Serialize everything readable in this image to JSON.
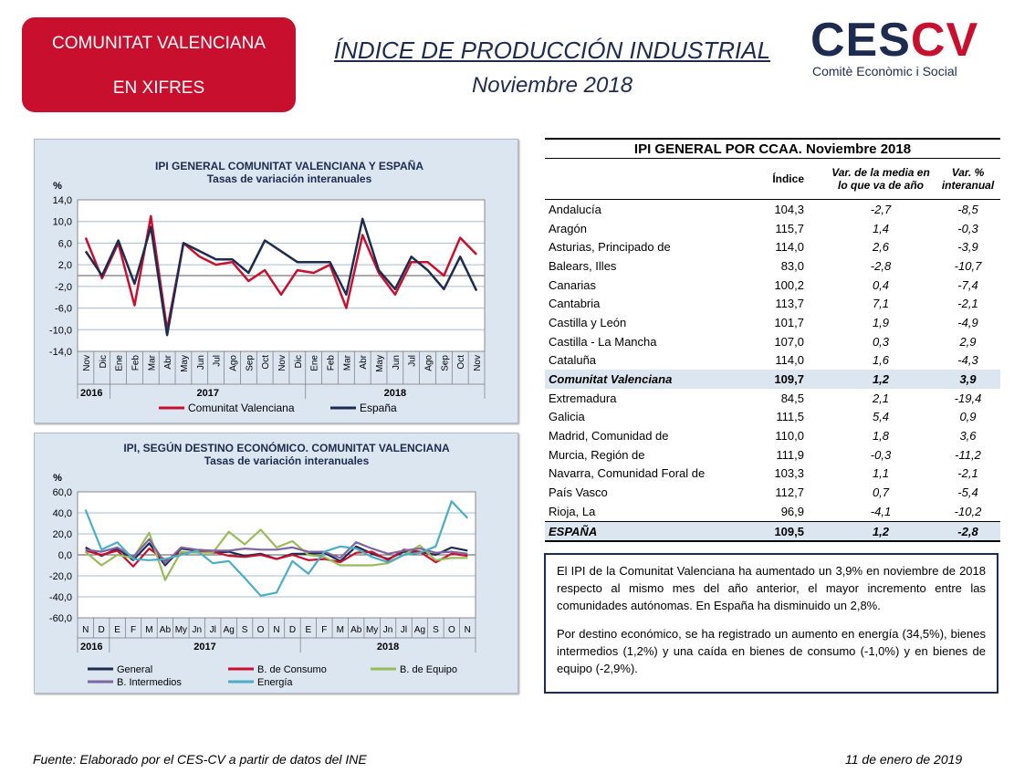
{
  "header": {
    "badge_line1": "COMUNITAT VALENCIANA",
    "badge_line2": "EN XIFRES",
    "title": "ÍNDICE DE PRODUCCIÓN INDUSTRIAL",
    "subtitle": "Noviembre 2018",
    "logo_mark_a": "CES",
    "logo_mark_b": "CV",
    "logo_tagline": "Comitè Econòmic i Social"
  },
  "colors": {
    "red": "#c8102e",
    "navy": "#1d2b4f",
    "green": "#9bbb59",
    "purple": "#8064a2",
    "cyan": "#4bacc6",
    "panel": "#dce6f1"
  },
  "chart_data": [
    {
      "type": "line",
      "title": "IPI GENERAL  COMUNITAT VALENCIANA Y ESPAÑA",
      "subtitle": "Tasas  de variación  interanuales",
      "ylabel": "%",
      "ylim": [
        -14,
        14
      ],
      "yticks": [
        "14,0",
        "10,0",
        "6,0",
        "2,0",
        "-2,0",
        "-6,0",
        "-10,0",
        "-14,0"
      ],
      "categories": [
        "Nov",
        "Dic",
        "Ene",
        "Feb",
        "Mar",
        "Abr",
        "May",
        "Jun",
        "Jul",
        "Ago",
        "Sep",
        "Oct",
        "Nov",
        "Dic",
        "Ene",
        "Feb",
        "Mar",
        "Abr",
        "May",
        "Jun",
        "Jul",
        "Ago",
        "Sep",
        "Oct",
        "Nov"
      ],
      "years": [
        "2016",
        "2017",
        "2018"
      ],
      "series": [
        {
          "name": "Comunitat Valenciana",
          "values": [
            7.0,
            -0.5,
            6.0,
            -5.5,
            11.0,
            -10.0,
            6.0,
            3.5,
            2.0,
            2.5,
            -1.0,
            1.0,
            -3.5,
            1.0,
            0.5,
            2.0,
            -6.0,
            7.5,
            0.5,
            -3.5,
            2.5,
            2.5,
            0.0,
            7.0,
            3.9
          ]
        },
        {
          "name": "España",
          "values": [
            4.5,
            0.0,
            6.5,
            -1.5,
            9.0,
            -11.0,
            6.0,
            4.5,
            3.0,
            3.0,
            0.5,
            6.5,
            4.5,
            2.5,
            2.5,
            2.5,
            -3.5,
            10.5,
            1.0,
            -2.5,
            3.5,
            1.0,
            -2.5,
            3.5,
            -2.8
          ]
        }
      ]
    },
    {
      "type": "line",
      "title": "IPI, SEGÚN DESTINO ECONÓMICO. COMUNITAT VALENCIANA",
      "subtitle": "Tasas de variación interanuales",
      "ylabel": "%",
      "ylim": [
        -60,
        60
      ],
      "yticks": [
        "60,0",
        "40,0",
        "20,0",
        "0,0",
        "-20,0",
        "-40,0",
        "-60,0"
      ],
      "categories": [
        "N",
        "D",
        "E",
        "F",
        "M",
        "Ab",
        "My",
        "Jn",
        "Jl",
        "Ag",
        "S",
        "O",
        "N",
        "D",
        "E",
        "F",
        "M",
        "Ab",
        "My",
        "Jn",
        "Jl",
        "Ag",
        "S",
        "O",
        "N"
      ],
      "years": [
        "2016",
        "2017",
        "2018"
      ],
      "series": [
        {
          "name": "General",
          "values": [
            7,
            -1,
            6,
            -5,
            11,
            -10,
            6,
            4,
            2,
            3,
            -1,
            1,
            -4,
            1,
            1,
            2,
            -6,
            8,
            1,
            -4,
            3,
            3,
            0,
            7,
            4
          ]
        },
        {
          "name": "B. de Consumo",
          "values": [
            4,
            0,
            4,
            -11,
            6,
            -5,
            2,
            3,
            3,
            -1,
            -2,
            0,
            -4,
            0,
            -5,
            -4,
            -7,
            2,
            3,
            -5,
            5,
            3,
            -7,
            1,
            -1
          ]
        },
        {
          "name": "B. de Equipo",
          "values": [
            3,
            -10,
            0,
            -3,
            21,
            -24,
            3,
            2,
            2,
            22,
            10,
            24,
            7,
            13,
            0,
            -2,
            -10,
            -10,
            -10,
            -8,
            0,
            9,
            -5,
            -3,
            -3
          ]
        },
        {
          "name": "B. Intermedios",
          "values": [
            5,
            3,
            7,
            -2,
            15,
            -8,
            7,
            5,
            4,
            4,
            6,
            5,
            5,
            7,
            3,
            3,
            -3,
            12,
            6,
            1,
            4,
            6,
            2,
            3,
            1
          ]
        },
        {
          "name": "Energía",
          "values": [
            43,
            5,
            12,
            -4,
            -5,
            -4,
            0,
            4,
            -8,
            -6,
            -22,
            -39,
            -36,
            -6,
            -18,
            3,
            8,
            6,
            -2,
            -7,
            0,
            2,
            8,
            51,
            35
          ]
        }
      ]
    }
  ],
  "table": {
    "title": "IPI GENERAL POR CCAA. Noviembre 2018",
    "col_indice": "Índice",
    "col_media": "Var. de la media en lo que va de año",
    "col_interanual": "Var. % interanual",
    "rows": [
      {
        "name": "Andalucía",
        "indice": "104,3",
        "media": "-2,7",
        "interanual": "-8,5"
      },
      {
        "name": "Aragón",
        "indice": "115,7",
        "media": "1,4",
        "interanual": "-0,3"
      },
      {
        "name": "Asturias, Principado de",
        "indice": "114,0",
        "media": "2,6",
        "interanual": "-3,9"
      },
      {
        "name": "Balears, Illes",
        "indice": "83,0",
        "media": "-2,8",
        "interanual": "-10,7"
      },
      {
        "name": "Canarias",
        "indice": "100,2",
        "media": "0,4",
        "interanual": "-7,4"
      },
      {
        "name": "Cantabria",
        "indice": "113,7",
        "media": "7,1",
        "interanual": "-2,1"
      },
      {
        "name": "Castilla y León",
        "indice": "101,7",
        "media": "1,9",
        "interanual": "-4,9"
      },
      {
        "name": "Castilla - La Mancha",
        "indice": "107,0",
        "media": "0,3",
        "interanual": "2,9"
      },
      {
        "name": "Cataluña",
        "indice": "114,0",
        "media": "1,6",
        "interanual": "-4,3"
      },
      {
        "name": "Comunitat Valenciana",
        "indice": "109,7",
        "media": "1,2",
        "interanual": "3,9"
      },
      {
        "name": "Extremadura",
        "indice": "84,5",
        "media": "2,1",
        "interanual": "-19,4"
      },
      {
        "name": "Galicia",
        "indice": "111,5",
        "media": "5,4",
        "interanual": "0,9"
      },
      {
        "name": "Madrid, Comunidad de",
        "indice": "110,0",
        "media": "1,8",
        "interanual": "3,6"
      },
      {
        "name": "Murcia, Región de",
        "indice": "111,9",
        "media": "-0,3",
        "interanual": "-11,2"
      },
      {
        "name": "Navarra, Comunidad Foral de",
        "indice": "103,3",
        "media": "1,1",
        "interanual": "-2,1"
      },
      {
        "name": "País Vasco",
        "indice": "112,7",
        "media": "0,7",
        "interanual": "-5,4"
      },
      {
        "name": "Rioja, La",
        "indice": "96,9",
        "media": "-4,1",
        "interanual": "-10,2"
      }
    ],
    "total": {
      "name": "ESPAÑA",
      "indice": "109,5",
      "media": "1,2",
      "interanual": "-2,8"
    }
  },
  "summary": {
    "p1": "El IPI de la Comunitat Valenciana ha aumentado un 3,9% en noviembre de 2018 respecto al mismo mes del año anterior, el mayor incremento entre las comunidades autónomas. En España ha disminuido un 2,8%.",
    "p2": "Por destino económico, se ha registrado un aumento en energía (34,5%), bienes intermedios (1,2%) y una caída en bienes de consumo (-1,0%) y en bienes de equipo (-2,9%)."
  },
  "footer": {
    "source": "Fuente: Elaborado por el CES-CV a partir de datos del INE",
    "date": "11 de enero de 2019"
  }
}
